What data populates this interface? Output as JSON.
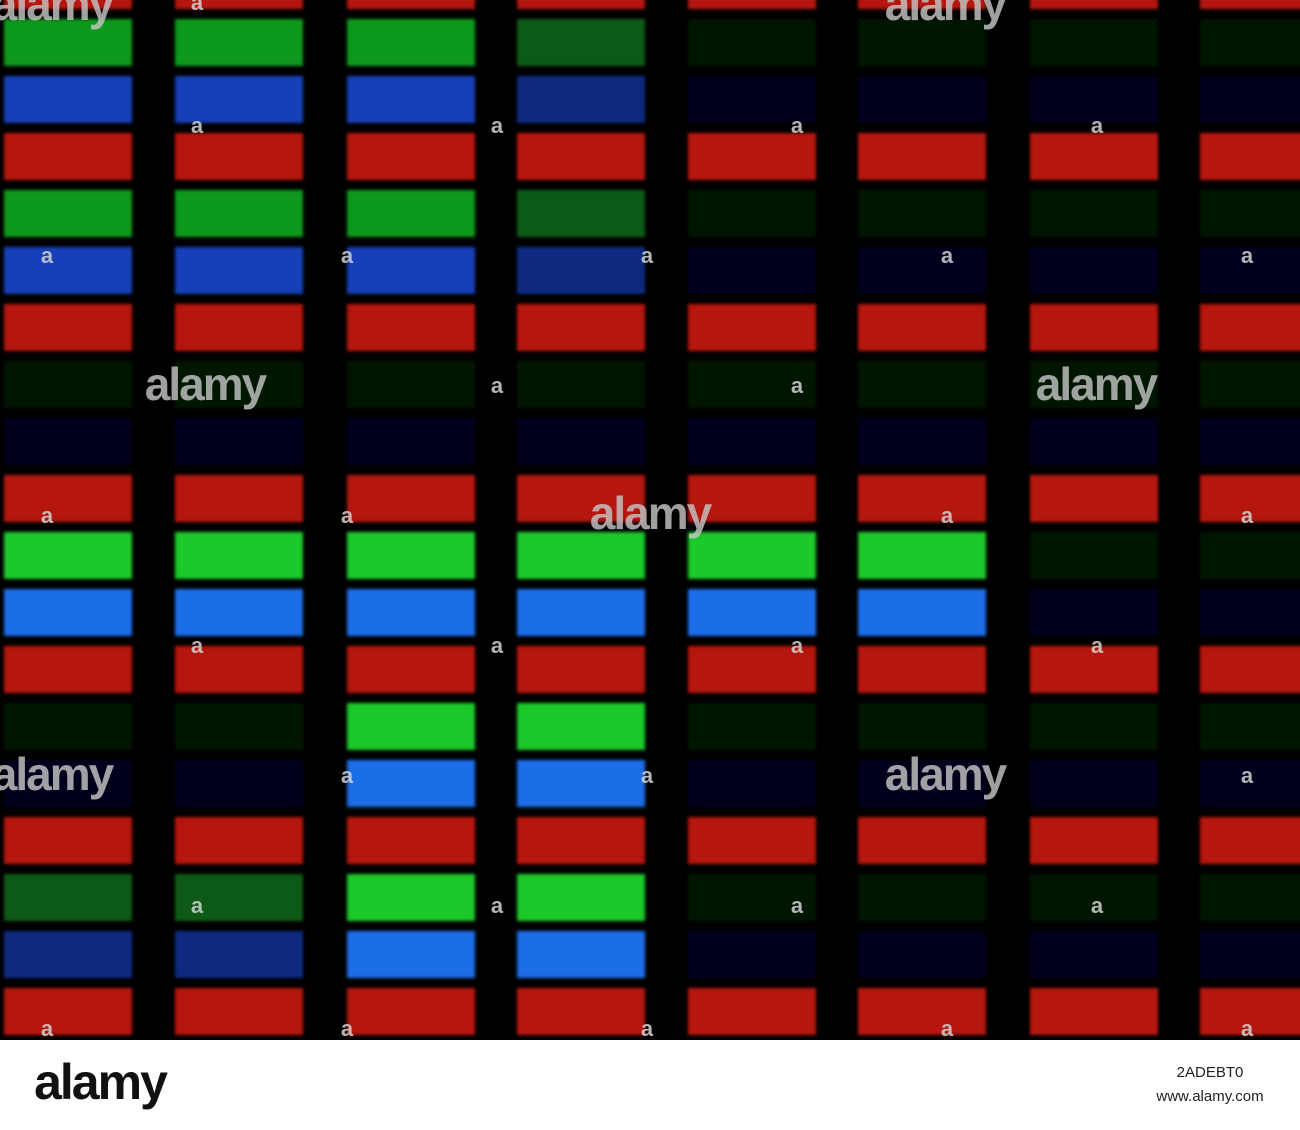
{
  "watermarks": [
    "alamy",
    "alamy",
    "alamy",
    "alamy",
    "alamy",
    "alamy",
    "alamy"
  ],
  "marks": [
    "a",
    "a",
    "a",
    "a",
    "a",
    "a",
    "a",
    "a",
    "a",
    "a",
    "a",
    "a",
    "a",
    "a",
    "a",
    "a",
    "a",
    "a",
    "a",
    "a",
    "a",
    "a",
    "a",
    "a",
    "a",
    "a",
    "a",
    "a",
    "a",
    "a",
    "a",
    "a"
  ],
  "footer": {
    "logo": "alamy",
    "image_id": "2ADEBT0",
    "url": "www.alamy.com"
  }
}
